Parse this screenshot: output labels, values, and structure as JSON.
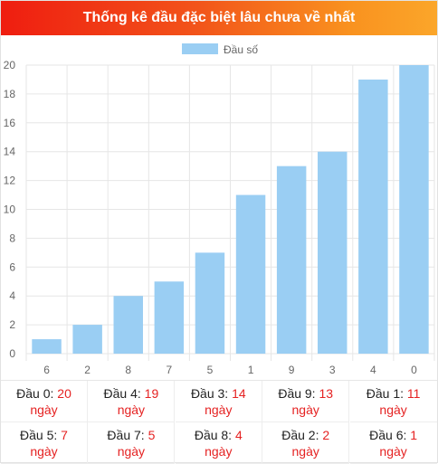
{
  "header": {
    "title": "Thống kê đầu đặc biệt lâu chưa về nhất"
  },
  "colors": {
    "bar": "#9acef3",
    "accent": "#e52222",
    "grid": "#e6e6e6"
  },
  "chart_data": {
    "type": "bar",
    "legend": {
      "label": "Đầu số",
      "placement": "top-center"
    },
    "categories": [
      "6",
      "2",
      "8",
      "7",
      "5",
      "1",
      "9",
      "3",
      "4",
      "0"
    ],
    "series": [
      {
        "name": "Đầu số",
        "values": [
          1,
          2,
          4,
          5,
          7,
          11,
          13,
          14,
          19,
          20
        ]
      }
    ],
    "ylim": [
      0,
      20
    ],
    "yticks": [
      0,
      2,
      4,
      6,
      8,
      10,
      12,
      14,
      16,
      18,
      20
    ],
    "grid": true
  },
  "stats": {
    "unit": "ngày",
    "items": [
      {
        "label": "Đầu 0:",
        "value": "20"
      },
      {
        "label": "Đầu 4:",
        "value": "19"
      },
      {
        "label": "Đầu 3:",
        "value": "14"
      },
      {
        "label": "Đầu 9:",
        "value": "13"
      },
      {
        "label": "Đầu 1:",
        "value": "11"
      },
      {
        "label": "Đầu 5:",
        "value": "7"
      },
      {
        "label": "Đầu 7:",
        "value": "5"
      },
      {
        "label": "Đầu 8:",
        "value": "4"
      },
      {
        "label": "Đầu 2:",
        "value": "2"
      },
      {
        "label": "Đầu 6:",
        "value": "1"
      }
    ]
  }
}
